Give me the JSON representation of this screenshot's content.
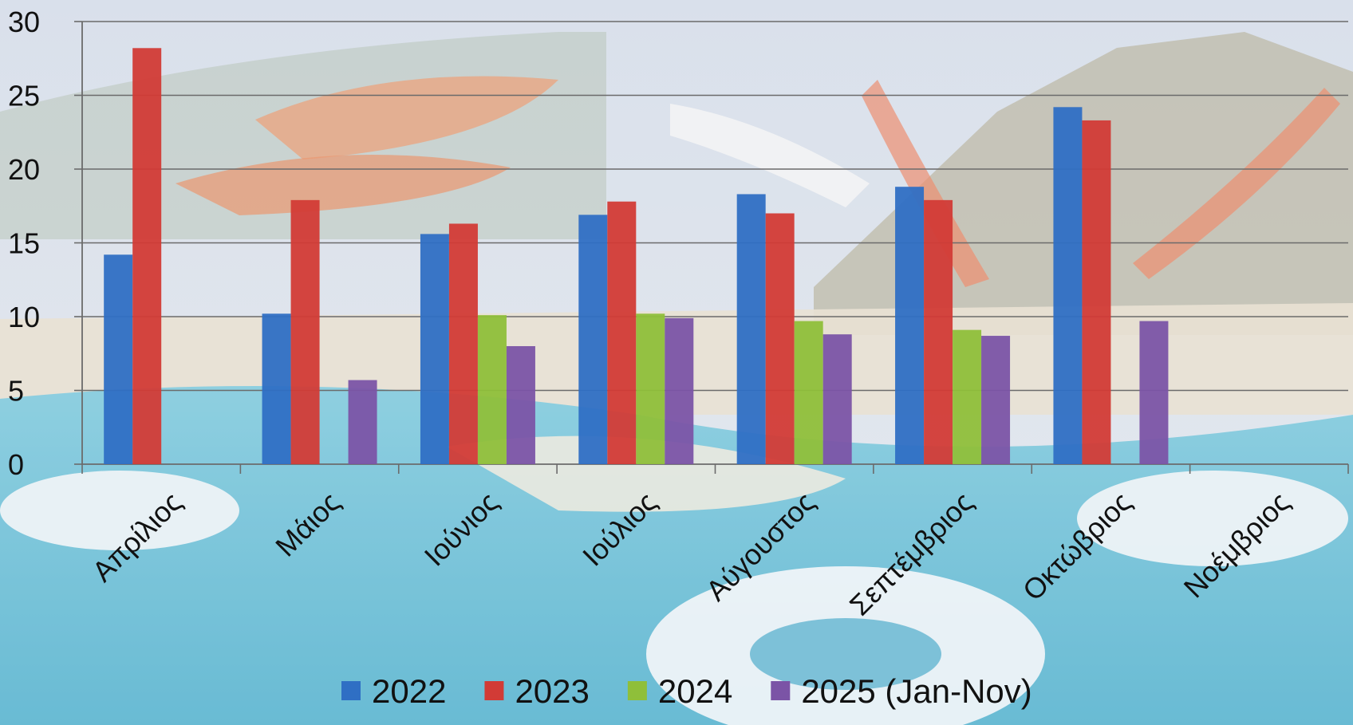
{
  "chart_data": {
    "type": "bar",
    "title": "",
    "xlabel": "",
    "ylabel": "",
    "ylim": [
      0,
      30
    ],
    "yticks": [
      0,
      5,
      10,
      15,
      20,
      25,
      30
    ],
    "grid": true,
    "legend_position": "bottom",
    "categories": [
      "Απρίλιος",
      "Μάιος",
      "Ιούνιος",
      "Ιούλιος",
      "Αύγουστος",
      "Σεπτέμβριος",
      "Οκτώβριος",
      "Νοέμβριος"
    ],
    "series": [
      {
        "name": "2022",
        "color": "#2f6fc4",
        "values": [
          14.2,
          10.2,
          15.6,
          16.9,
          18.3,
          18.8,
          24.2,
          null
        ]
      },
      {
        "name": "2023",
        "color": "#d23b36",
        "values": [
          28.2,
          17.9,
          16.3,
          17.8,
          17.0,
          17.9,
          23.3,
          null
        ]
      },
      {
        "name": "2024",
        "color": "#8fbf3a",
        "values": [
          null,
          null,
          10.1,
          10.2,
          9.7,
          9.1,
          null,
          null
        ]
      },
      {
        "name": "2025 (Jan-Nov)",
        "color": "#7b54a6",
        "values": [
          null,
          5.7,
          8.0,
          9.9,
          8.8,
          8.7,
          9.7,
          null
        ]
      }
    ]
  }
}
